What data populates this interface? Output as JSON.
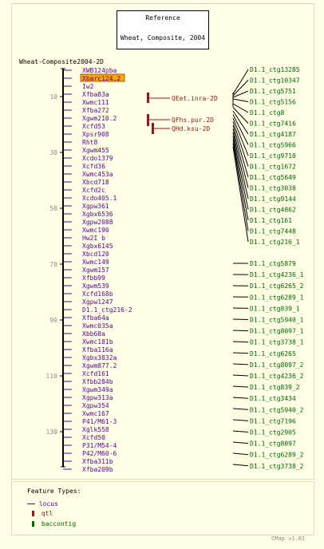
{
  "reference": {
    "title": "Reference",
    "subtitle": "Wheat, Composite, 2004"
  },
  "map": {
    "name": "Wheat-Composite2004-2D",
    "ticks": [
      10,
      30,
      50,
      70,
      90,
      110,
      130
    ]
  },
  "features": [
    "XWB124pba",
    "Xbarc124.2",
    "Iw2",
    "Xfba83a",
    "Xwmc111",
    "Xfba272",
    "Xgwm210.2",
    "Xcfd53",
    "Xpsr908",
    "Rht8",
    "Xgwm455",
    "Xcdo1379",
    "Xcfd36",
    "Xwmc453a",
    "Xbcd718",
    "Xcfd2c",
    "Xcdo405.1",
    "Xgpw361",
    "Xgbx6536",
    "Xgpw2088",
    "Xwmc190",
    "Hw2I b",
    "Xgbx6145",
    "Xbcd120",
    "Xwmc149",
    "Xgwm157",
    "Xfbb99",
    "Xgwm539",
    "Xcfd168b",
    "Xgpw1247",
    "D1.1_ctg216-2",
    "Xfba64a",
    "Xwmc035a",
    "Xbb68a",
    "Xwmc181b",
    "Xfba116a",
    "Xgbx3832a",
    "Xgwm877.2",
    "Xcfd161",
    "Xfbb284b",
    "Xgwm349a",
    "Xgpw313a",
    "Xgpw354",
    "Xwmc167",
    "P41/M61-3",
    "Xglk558",
    "Xcfd50",
    "P31/M54-4",
    "P42/M60-6",
    "Xfba311b",
    "Xfba209b"
  ],
  "highlighted_feature": "Xbarc124.2",
  "qtls": [
    "QEet.inra-2D",
    "QFhs.pur.2D",
    "QHd.ksu-2D"
  ],
  "contigs": [
    "D1.1_ctg13285",
    "D1.1_ctg10347",
    "D1.1_ctg5751",
    "D1.1_ctg5156",
    "D1.1_ctg8",
    "D1.1_ctg7416",
    "D1.1_ctg4187",
    "D1.1_ctg5966",
    "D1.1_ctg9710",
    "D1.1_ctg1672",
    "D1.1_ctg5649",
    "D1.1_ctg3038",
    "D1.1_ctg9144",
    "D1.1_ctg4862",
    "D1.1_ctg161",
    "D1.1_ctg7448",
    "D1.1_ctg216_1",
    "D1.1_ctg5879",
    "D1.1_ctg4236_1",
    "D1.1_ctg6265_2",
    "D1.1_ctg6289_1",
    "D1.1_ctg839_1",
    "D1.1_ctg5940_1",
    "D1.1_ctg8097_1",
    "D1.1_ctg3738_1",
    "D1.1_ctg6265",
    "D1.1_ctg8097_2",
    "D1.1_ctg4236_2",
    "D1.1_ctg839_2",
    "D1.1_ctg3434",
    "D1.1_ctg5940_2",
    "D1.1_ctg7196",
    "D1.1_ctg2905",
    "D1.1_ctg8097",
    "D1.1_ctg6289_2",
    "D1.1_ctg3738_2"
  ],
  "legend": {
    "title": "Feature Types:",
    "items": [
      "locus",
      "qtl",
      "baccontig"
    ]
  },
  "footer": {
    "version": "CMap v1.01"
  },
  "colors": {
    "locus": "#5a0096",
    "qtl": "#8b1a1a",
    "baccontig": "#006400",
    "highlight": "#ffa500"
  }
}
